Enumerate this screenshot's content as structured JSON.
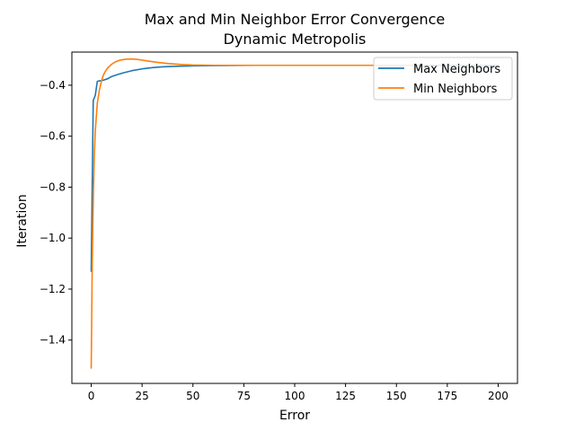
{
  "chart_data": {
    "type": "line",
    "title": "Max and Min Neighbor Error Convergence",
    "subtitle": "Dynamic Metropolis",
    "xlabel": "Error",
    "ylabel": "Iteration",
    "xlim": [
      -9.5,
      209.5
    ],
    "ylim": [
      -1.57,
      -0.27
    ],
    "xticks": [
      0,
      25,
      50,
      75,
      100,
      125,
      150,
      175,
      200
    ],
    "yticks": [
      -1.4,
      -1.2,
      -1.0,
      -0.8,
      -0.6,
      -0.4
    ],
    "xtick_labels": [
      "0",
      "25",
      "50",
      "75",
      "100",
      "125",
      "150",
      "175",
      "200"
    ],
    "ytick_labels": [
      "−1.4",
      "−1.2",
      "−1.0",
      "−0.8",
      "−0.6",
      "−0.4"
    ],
    "grid": false,
    "legend_position": "top-right",
    "series": [
      {
        "name": "Max Neighbors",
        "color": "#1f77b4",
        "x": [
          0,
          1,
          2,
          3,
          4,
          5,
          6,
          8,
          10,
          13,
          16,
          20,
          25,
          30,
          35,
          40,
          50,
          60,
          80,
          100,
          125,
          150,
          175,
          200
        ],
        "y": [
          -1.13,
          -0.46,
          -0.44,
          -0.385,
          -0.383,
          -0.382,
          -0.38,
          -0.375,
          -0.366,
          -0.358,
          -0.351,
          -0.343,
          -0.336,
          -0.331,
          -0.328,
          -0.326,
          -0.324,
          -0.323,
          -0.322,
          -0.322,
          -0.322,
          -0.322,
          -0.322,
          -0.322
        ]
      },
      {
        "name": "Min Neighbors",
        "color": "#ff7f0e",
        "x": [
          0,
          0.5,
          1,
          1.5,
          2,
          3,
          4,
          5,
          6,
          7,
          8,
          10,
          12,
          14,
          17,
          20,
          23,
          27,
          32,
          38,
          45,
          50,
          60,
          80,
          100,
          125,
          150,
          160
        ],
        "y": [
          -1.51,
          -1.1,
          -0.85,
          -0.68,
          -0.58,
          -0.47,
          -0.42,
          -0.385,
          -0.36,
          -0.345,
          -0.333,
          -0.318,
          -0.308,
          -0.302,
          -0.298,
          -0.297,
          -0.299,
          -0.304,
          -0.31,
          -0.315,
          -0.319,
          -0.321,
          -0.322,
          -0.322,
          -0.322,
          -0.322,
          -0.322,
          -0.322
        ]
      }
    ]
  }
}
